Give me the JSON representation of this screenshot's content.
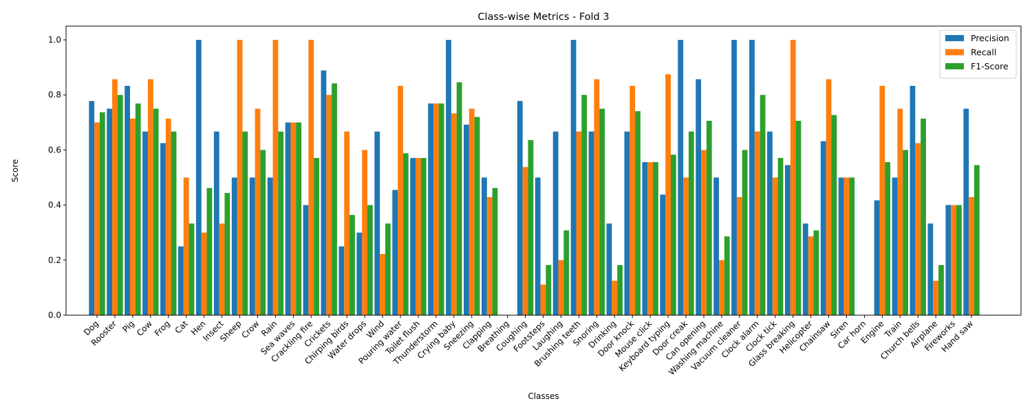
{
  "chart_data": {
    "type": "bar",
    "title": "Class-wise Metrics - Fold 3",
    "xlabel": "Classes",
    "ylabel": "Score",
    "ylim": [
      0,
      1.05
    ],
    "yticks": [
      "0.0",
      "0.2",
      "0.4",
      "0.6",
      "0.8",
      "1.0"
    ],
    "ytick_values": [
      0,
      0.2,
      0.4,
      0.6,
      0.8,
      1.0
    ],
    "grid": false,
    "legend_position": "top-right",
    "categories": [
      "Dog",
      "Rooster",
      "Pig",
      "Cow",
      "Frog",
      "Cat",
      "Hen",
      "Insect",
      "Sheep",
      "Crow",
      "Rain",
      "Sea waves",
      "Crackling fire",
      "Crickets",
      "Chirping birds",
      "Water drops",
      "Wind",
      "Pouring water",
      "Toilet flush",
      "Thunderstorm",
      "Crying baby",
      "Sneezing",
      "Clapping",
      "Breathing",
      "Coughing",
      "Footsteps",
      "Laughing",
      "Brushing teeth",
      "Snoring",
      "Drinking",
      "Door knock",
      "Mouse click",
      "Keyboard typing",
      "Door creak",
      "Can opening",
      "Washing machine",
      "Vacuum cleaner",
      "Clock alarm",
      "Clock tick",
      "Glass breaking",
      "Helicopter",
      "Chainsaw",
      "Siren",
      "Car horn",
      "Engine",
      "Train",
      "Church bells",
      "Airplane",
      "Fireworks",
      "Hand saw"
    ],
    "series": [
      {
        "name": "Precision",
        "color": "#1f77b4",
        "values": [
          0.778,
          0.75,
          0.833,
          0.667,
          0.625,
          0.25,
          1.0,
          0.667,
          0.5,
          0.5,
          0.5,
          0.7,
          0.4,
          0.889,
          0.25,
          0.3,
          0.667,
          0.455,
          0.571,
          0.769,
          1.0,
          0.692,
          0.5,
          0.0,
          0.778,
          0.5,
          0.667,
          1.0,
          0.667,
          0.333,
          0.667,
          0.556,
          0.438,
          1.0,
          0.857,
          0.5,
          1.0,
          1.0,
          0.667,
          0.545,
          0.333,
          0.632,
          0.5,
          0.0,
          0.417,
          0.5,
          0.833,
          0.333,
          0.4,
          0.75
        ]
      },
      {
        "name": "Recall",
        "color": "#ff7f0e",
        "values": [
          0.7,
          0.857,
          0.714,
          0.857,
          0.714,
          0.5,
          0.3,
          0.333,
          1.0,
          0.75,
          1.0,
          0.7,
          1.0,
          0.8,
          0.667,
          0.6,
          0.222,
          0.833,
          0.571,
          0.769,
          0.733,
          0.75,
          0.429,
          0.0,
          0.538,
          0.111,
          0.2,
          0.667,
          0.857,
          0.125,
          0.833,
          0.556,
          0.875,
          0.5,
          0.6,
          0.2,
          0.429,
          0.667,
          0.5,
          1.0,
          0.286,
          0.857,
          0.5,
          0.0,
          0.833,
          0.75,
          0.625,
          0.125,
          0.4,
          0.429
        ]
      },
      {
        "name": "F1-Score",
        "color": "#2ca02c",
        "values": [
          0.737,
          0.8,
          0.769,
          0.75,
          0.667,
          0.333,
          0.462,
          0.444,
          0.667,
          0.6,
          0.667,
          0.7,
          0.571,
          0.842,
          0.364,
          0.4,
          0.333,
          0.588,
          0.571,
          0.769,
          0.846,
          0.72,
          0.462,
          0.0,
          0.636,
          0.182,
          0.308,
          0.8,
          0.75,
          0.182,
          0.741,
          0.556,
          0.583,
          0.667,
          0.706,
          0.286,
          0.6,
          0.8,
          0.571,
          0.706,
          0.308,
          0.727,
          0.5,
          0.0,
          0.556,
          0.6,
          0.714,
          0.182,
          0.4,
          0.545
        ]
      }
    ]
  }
}
